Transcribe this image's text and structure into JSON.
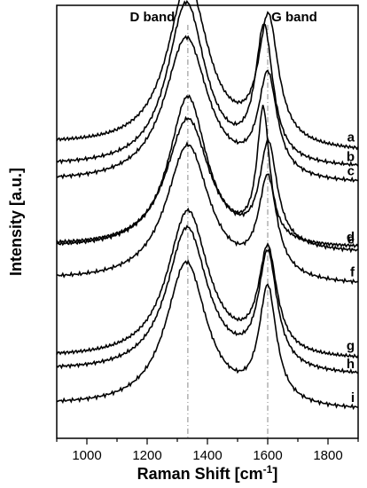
{
  "chart_data": {
    "type": "line",
    "xlabel": "Raman Shift [cm",
    "xlabel_sup": "-1",
    "xlabel_close": "]",
    "ylabel": "Intensity [a.u.]",
    "xlim": [
      900,
      1900
    ],
    "x_ticks": [
      1000,
      1200,
      1400,
      1600,
      1800
    ],
    "x_tick_labels": [
      "1000",
      "1200",
      "1400",
      "1600",
      "1800"
    ],
    "y_ticks_shown": false,
    "grid": false,
    "reference_lines": [
      {
        "x": 1335,
        "label": "D band",
        "style": "dash-dot"
      },
      {
        "x": 1600,
        "label": "G band",
        "style": "dash-dot"
      }
    ],
    "series": [
      {
        "name": "a",
        "baseline": 0.48,
        "d_peak_height": 0.62,
        "d_center": 1335,
        "d_width": 75,
        "g_peak_height": 0.47,
        "g_center": 1602,
        "g_width": 40,
        "valley_between": 0.28,
        "end_value": 0.03
      },
      {
        "name": "b",
        "baseline": 0.56,
        "d_peak_height": 0.62,
        "d_center": 1330,
        "d_width": 70,
        "g_peak_height": 0.5,
        "g_center": 1588,
        "g_width": 35,
        "valley_between": 0.3,
        "end_value": 0.05
      },
      {
        "name": "c",
        "baseline": 0.62,
        "d_peak_height": 0.55,
        "d_center": 1330,
        "d_width": 80,
        "g_peak_height": 0.38,
        "g_center": 1600,
        "g_width": 38,
        "valley_between": 0.28,
        "end_value": 0.05
      },
      {
        "name": "d",
        "baseline": 0.86,
        "d_peak_height": 0.57,
        "d_center": 1335,
        "d_width": 70,
        "g_peak_height": 0.49,
        "g_center": 1585,
        "g_width": 25,
        "valley_between": 0.3,
        "end_value": 0.05
      },
      {
        "name": "e",
        "baseline": 0.87,
        "d_peak_height": 0.5,
        "d_center": 1335,
        "d_width": 80,
        "g_peak_height": 0.38,
        "g_center": 1602,
        "g_width": 35,
        "valley_between": 0.25,
        "end_value": 0.04
      },
      {
        "name": "f",
        "baseline": 0.99,
        "d_peak_height": 0.52,
        "d_center": 1335,
        "d_width": 80,
        "g_peak_height": 0.37,
        "g_center": 1600,
        "g_width": 37,
        "valley_between": 0.26,
        "end_value": 0.04
      },
      {
        "name": "g",
        "baseline": 1.28,
        "d_peak_height": 0.56,
        "d_center": 1335,
        "d_width": 75,
        "g_peak_height": 0.39,
        "g_center": 1600,
        "g_width": 37,
        "valley_between": 0.28,
        "end_value": 0.05
      },
      {
        "name": "h",
        "baseline": 1.33,
        "d_peak_height": 0.55,
        "d_center": 1333,
        "d_width": 75,
        "g_peak_height": 0.43,
        "g_center": 1600,
        "g_width": 37,
        "valley_between": 0.3,
        "end_value": 0.04
      },
      {
        "name": "i",
        "baseline": 1.46,
        "d_peak_height": 0.55,
        "d_center": 1330,
        "d_width": 75,
        "g_peak_height": 0.43,
        "g_center": 1600,
        "g_width": 35,
        "valley_between": 0.28,
        "end_value": 0.04
      }
    ]
  }
}
